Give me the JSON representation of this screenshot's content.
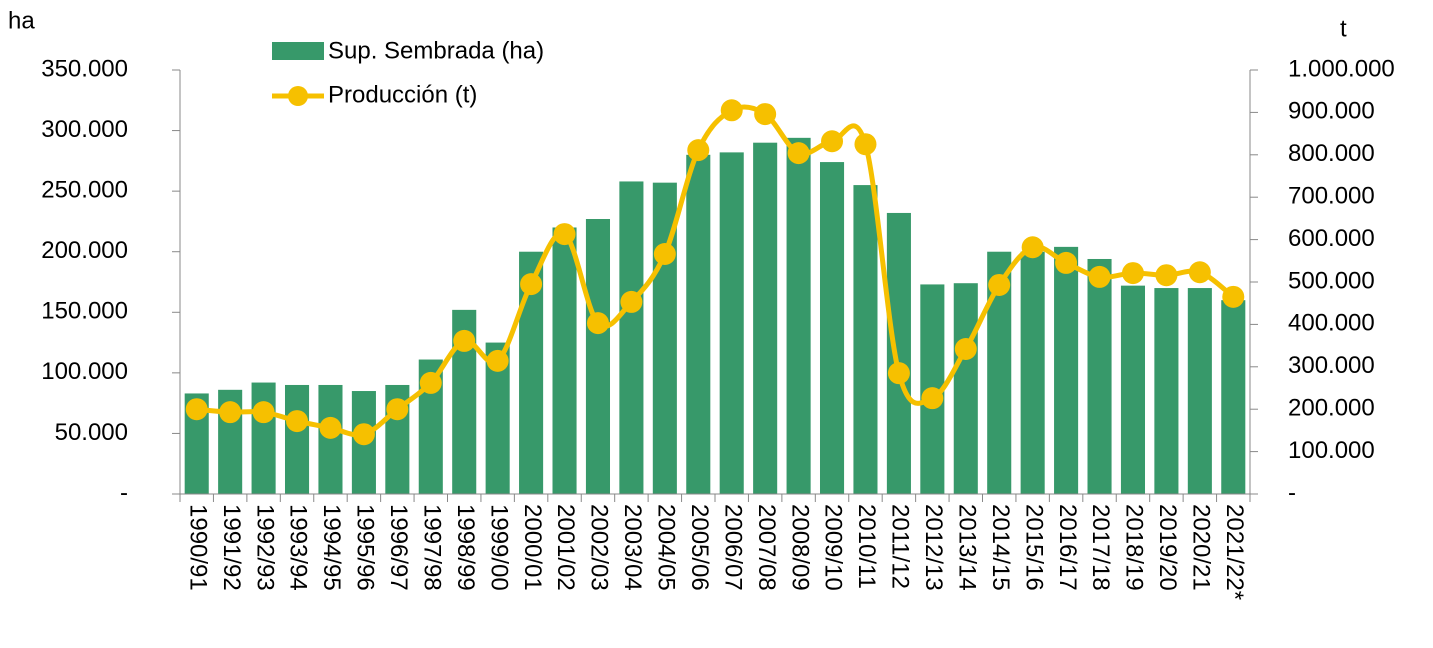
{
  "chart_data": {
    "type": "bar_line",
    "y_label": "ha",
    "y2_label": "t",
    "categories": [
      "1990/91",
      "1991/92",
      "1992/93",
      "1993/94",
      "1994/95",
      "1995/96",
      "1996/97",
      "1997/98",
      "1998/99",
      "1999/00",
      "2000/01",
      "2001/02",
      "2002/03",
      "2003/04",
      "2004/05",
      "2005/06",
      "2006/07",
      "2007/08",
      "2008/09",
      "2009/10",
      "2010/11",
      "2011/12",
      "2012/13",
      "2013/14",
      "2014/15",
      "2015/16",
      "2016/17",
      "2017/18",
      "2018/19",
      "2019/20",
      "2020/21",
      "2021/22*"
    ],
    "series": [
      {
        "name": "Sup. Sembrada (ha)",
        "type": "bar",
        "color": "#37996a",
        "values": [
          83000,
          86000,
          92000,
          90000,
          90000,
          85000,
          90000,
          111000,
          152000,
          125000,
          200000,
          220000,
          227000,
          258000,
          257000,
          280000,
          282000,
          290000,
          294000,
          274000,
          255000,
          232000,
          173000,
          174000,
          200000,
          200000,
          204000,
          194000,
          172000,
          170000,
          170000,
          160000
        ]
      },
      {
        "name": "Producción (t)",
        "type": "line",
        "axis": "y2",
        "color": "#f6c000",
        "values": [
          200000,
          193000,
          193000,
          172000,
          156000,
          141000,
          200000,
          262000,
          361000,
          314000,
          495000,
          613000,
          403000,
          453000,
          566000,
          811000,
          905000,
          896000,
          804000,
          832000,
          825000,
          285000,
          226000,
          342000,
          493000,
          582000,
          545000,
          512000,
          521000,
          516000,
          523000,
          465000
        ]
      }
    ],
    "ylim": [
      0,
      350000
    ],
    "yticks": [
      {
        "value": 0,
        "label": "-"
      },
      {
        "value": 50000,
        "label": "50.000"
      },
      {
        "value": 100000,
        "label": "100.000"
      },
      {
        "value": 150000,
        "label": "150.000"
      },
      {
        "value": 200000,
        "label": "200.000"
      },
      {
        "value": 250000,
        "label": "250.000"
      },
      {
        "value": 300000,
        "label": "300.000"
      },
      {
        "value": 350000,
        "label": "350.000"
      }
    ],
    "y2lim": [
      0,
      1000000
    ],
    "y2ticks": [
      {
        "value": 0,
        "label": "-"
      },
      {
        "value": 100000,
        "label": "100.000"
      },
      {
        "value": 200000,
        "label": "200.000"
      },
      {
        "value": 300000,
        "label": "300.000"
      },
      {
        "value": 400000,
        "label": "400.000"
      },
      {
        "value": 500000,
        "label": "500.000"
      },
      {
        "value": 600000,
        "label": "600.000"
      },
      {
        "value": 700000,
        "label": "700.000"
      },
      {
        "value": 800000,
        "label": "800.000"
      },
      {
        "value": 900000,
        "label": "900.000"
      },
      {
        "value": 1000000,
        "label": "1.000.000"
      }
    ],
    "legend": "top-left"
  }
}
